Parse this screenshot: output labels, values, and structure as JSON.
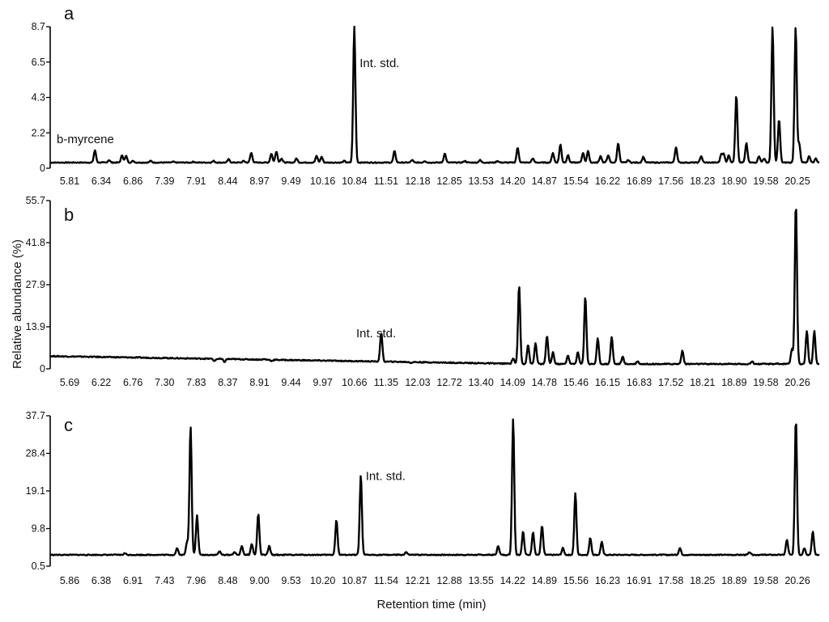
{
  "figure": {
    "xlabel": "Retention time (min)",
    "ylabel": "Relative abundance (%)"
  },
  "chart_data": [
    {
      "type": "line",
      "panel": "a",
      "title": "",
      "xlabel": "",
      "ylabel": "",
      "xlim": [
        5.45,
        20.75
      ],
      "ylim": [
        0,
        8.7
      ],
      "y_ticks": [
        "0",
        "2.2",
        "4.3",
        "6.5",
        "8.7"
      ],
      "x_ticks": [
        "5.81",
        "6.34",
        "6.86",
        "7.39",
        "7.91",
        "8.44",
        "8.97",
        "9.49",
        "10.16",
        "10.84",
        "11.51",
        "12.18",
        "12.85",
        "13.53",
        "14.20",
        "14.87",
        "15.54",
        "16.22",
        "16.89",
        "17.56",
        "18.23",
        "18.90",
        "19.58",
        "20.25"
      ],
      "baseline": 0.35,
      "annotations": [
        {
          "text": "b-myrcene",
          "x": 6.34,
          "y": 1.1
        },
        {
          "text": "Int. std.",
          "x": 11.51,
          "y": 8.7
        }
      ],
      "peaks": [
        {
          "rt": 6.34,
          "h": 1.1
        },
        {
          "rt": 6.62,
          "h": 0.5
        },
        {
          "rt": 6.88,
          "h": 0.8
        },
        {
          "rt": 6.96,
          "h": 0.75
        },
        {
          "rt": 7.1,
          "h": 0.45
        },
        {
          "rt": 7.45,
          "h": 0.45
        },
        {
          "rt": 7.9,
          "h": 0.4
        },
        {
          "rt": 8.3,
          "h": 0.4
        },
        {
          "rt": 8.7,
          "h": 0.45
        },
        {
          "rt": 9.0,
          "h": 0.55
        },
        {
          "rt": 9.3,
          "h": 0.45
        },
        {
          "rt": 9.45,
          "h": 0.95
        },
        {
          "rt": 9.85,
          "h": 0.9
        },
        {
          "rt": 9.95,
          "h": 1.05
        },
        {
          "rt": 10.05,
          "h": 0.6
        },
        {
          "rt": 10.35,
          "h": 0.6
        },
        {
          "rt": 10.75,
          "h": 0.75
        },
        {
          "rt": 10.85,
          "h": 0.7
        },
        {
          "rt": 11.3,
          "h": 0.45
        },
        {
          "rt": 11.5,
          "h": 8.7
        },
        {
          "rt": 12.3,
          "h": 1.05
        },
        {
          "rt": 12.65,
          "h": 0.5
        },
        {
          "rt": 12.9,
          "h": 0.45
        },
        {
          "rt": 13.3,
          "h": 0.9
        },
        {
          "rt": 13.7,
          "h": 0.45
        },
        {
          "rt": 14.0,
          "h": 0.5
        },
        {
          "rt": 14.35,
          "h": 0.45
        },
        {
          "rt": 14.75,
          "h": 1.25
        },
        {
          "rt": 15.05,
          "h": 0.6
        },
        {
          "rt": 15.45,
          "h": 0.95
        },
        {
          "rt": 15.6,
          "h": 1.45
        },
        {
          "rt": 15.75,
          "h": 0.8
        },
        {
          "rt": 16.05,
          "h": 0.95
        },
        {
          "rt": 16.15,
          "h": 1.05
        },
        {
          "rt": 16.4,
          "h": 0.75
        },
        {
          "rt": 16.55,
          "h": 0.8
        },
        {
          "rt": 16.75,
          "h": 1.55
        },
        {
          "rt": 16.95,
          "h": 0.5
        },
        {
          "rt": 17.25,
          "h": 0.7
        },
        {
          "rt": 17.9,
          "h": 1.3
        },
        {
          "rt": 18.4,
          "h": 0.75
        },
        {
          "rt": 18.8,
          "h": 0.85
        },
        {
          "rt": 18.85,
          "h": 0.85
        },
        {
          "rt": 18.95,
          "h": 0.8
        },
        {
          "rt": 19.1,
          "h": 4.5
        },
        {
          "rt": 19.3,
          "h": 1.55
        },
        {
          "rt": 19.55,
          "h": 0.75
        },
        {
          "rt": 19.65,
          "h": 0.6
        },
        {
          "rt": 19.82,
          "h": 8.7
        },
        {
          "rt": 19.95,
          "h": 3.0
        },
        {
          "rt": 20.28,
          "h": 8.7
        },
        {
          "rt": 20.35,
          "h": 1.5
        },
        {
          "rt": 20.55,
          "h": 0.75
        },
        {
          "rt": 20.68,
          "h": 0.6
        }
      ]
    },
    {
      "type": "line",
      "panel": "b",
      "title": "",
      "xlabel": "",
      "ylabel": "",
      "xlim": [
        5.3,
        20.75
      ],
      "ylim": [
        0,
        55.7
      ],
      "y_ticks": [
        "0",
        "13.9",
        "27.9",
        "41.8",
        "55.7"
      ],
      "x_ticks": [
        "5.69",
        "6.22",
        "6.76",
        "7.30",
        "7.83",
        "8.37",
        "8.91",
        "9.44",
        "9.97",
        "10.66",
        "11.35",
        "12.03",
        "12.72",
        "13.40",
        "14.09",
        "14.78",
        "15.46",
        "16.15",
        "16.83",
        "17.52",
        "18.21",
        "18.89",
        "19.58",
        "20.26"
      ],
      "baseline_start": 4.2,
      "baseline_end": 1.6,
      "annotations": [
        {
          "text": "Int. std.",
          "x": 11.35,
          "y": 12.0
        }
      ],
      "peaks": [
        {
          "rt": 8.6,
          "h": 2.6
        },
        {
          "rt": 8.8,
          "h": 2.3
        },
        {
          "rt": 9.6,
          "h": 3.2
        },
        {
          "rt": 9.75,
          "h": 2.6
        },
        {
          "rt": 11.95,
          "h": 12.0
        },
        {
          "rt": 12.55,
          "h": 2.0
        },
        {
          "rt": 14.6,
          "h": 3.5
        },
        {
          "rt": 14.72,
          "h": 27.5
        },
        {
          "rt": 14.9,
          "h": 8.0
        },
        {
          "rt": 15.05,
          "h": 8.5
        },
        {
          "rt": 15.28,
          "h": 11.0
        },
        {
          "rt": 15.4,
          "h": 5.5
        },
        {
          "rt": 15.7,
          "h": 4.5
        },
        {
          "rt": 15.9,
          "h": 5.5
        },
        {
          "rt": 16.05,
          "h": 24.0
        },
        {
          "rt": 16.3,
          "h": 10.0
        },
        {
          "rt": 16.58,
          "h": 10.5
        },
        {
          "rt": 16.8,
          "h": 4.0
        },
        {
          "rt": 17.1,
          "h": 2.5
        },
        {
          "rt": 18.0,
          "h": 6.0
        },
        {
          "rt": 19.4,
          "h": 2.5
        },
        {
          "rt": 19.9,
          "h": 1.8
        },
        {
          "rt": 20.2,
          "h": 6.5
        },
        {
          "rt": 20.28,
          "h": 55.0
        },
        {
          "rt": 20.5,
          "h": 12.5
        },
        {
          "rt": 20.65,
          "h": 12.5
        }
      ]
    },
    {
      "type": "line",
      "panel": "c",
      "title": "",
      "xlabel": "",
      "ylabel": "",
      "xlim": [
        5.3,
        20.75
      ],
      "ylim": [
        0.5,
        37.7
      ],
      "y_ticks": [
        "0.5",
        "9.8",
        "19.1",
        "28.4",
        "37.7"
      ],
      "x_ticks": [
        "5.86",
        "6.38",
        "6.91",
        "7.43",
        "7.96",
        "8.48",
        "9.00",
        "9.53",
        "10.20",
        "10.87",
        "11.54",
        "12.21",
        "12.88",
        "13.55",
        "14.22",
        "14.89",
        "15.56",
        "16.23",
        "16.91",
        "17.58",
        "18.25",
        "18.89",
        "19.58",
        "20.26"
      ],
      "baseline": 3.3,
      "annotations": [
        {
          "text": "Int. std.",
          "x": 11.54,
          "y": 23.0
        }
      ],
      "peaks": [
        {
          "rt": 6.8,
          "h": 3.7
        },
        {
          "rt": 7.85,
          "h": 5.0
        },
        {
          "rt": 8.05,
          "h": 6.5
        },
        {
          "rt": 8.12,
          "h": 35.0
        },
        {
          "rt": 8.25,
          "h": 13.0
        },
        {
          "rt": 8.7,
          "h": 4.2
        },
        {
          "rt": 9.0,
          "h": 4.0
        },
        {
          "rt": 9.15,
          "h": 5.5
        },
        {
          "rt": 9.35,
          "h": 6.0
        },
        {
          "rt": 9.48,
          "h": 13.5
        },
        {
          "rt": 9.7,
          "h": 5.5
        },
        {
          "rt": 11.05,
          "h": 12.0
        },
        {
          "rt": 11.54,
          "h": 23.0
        },
        {
          "rt": 12.45,
          "h": 4.0
        },
        {
          "rt": 14.3,
          "h": 5.5
        },
        {
          "rt": 14.6,
          "h": 37.0
        },
        {
          "rt": 14.8,
          "h": 9.0
        },
        {
          "rt": 15.0,
          "h": 9.0
        },
        {
          "rt": 15.18,
          "h": 10.5
        },
        {
          "rt": 15.6,
          "h": 5.0
        },
        {
          "rt": 15.85,
          "h": 18.5
        },
        {
          "rt": 16.15,
          "h": 7.5
        },
        {
          "rt": 16.38,
          "h": 6.5
        },
        {
          "rt": 17.95,
          "h": 5.0
        },
        {
          "rt": 19.35,
          "h": 4.0
        },
        {
          "rt": 20.1,
          "h": 7.0
        },
        {
          "rt": 20.28,
          "h": 37.0
        },
        {
          "rt": 20.45,
          "h": 5.0
        },
        {
          "rt": 20.62,
          "h": 9.0
        }
      ]
    }
  ]
}
